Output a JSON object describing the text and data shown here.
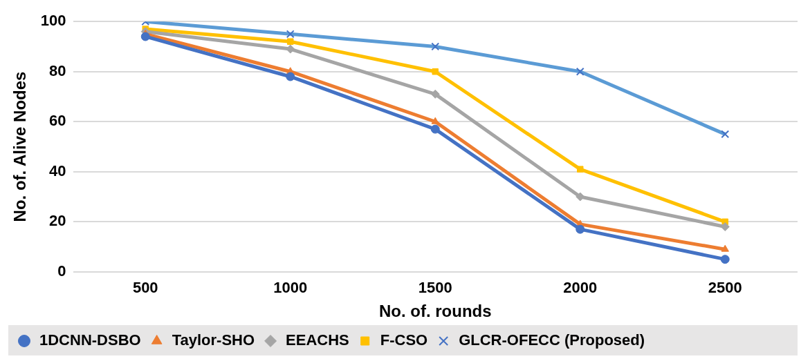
{
  "chart_data": {
    "type": "line",
    "xlabel": "No. of. rounds",
    "ylabel": "No. of. Alive Nodes",
    "categories": [
      "500",
      "1000",
      "1500",
      "2000",
      "2500"
    ],
    "series": [
      {
        "name": "1DCNN-DSBO",
        "color": "#4472c4",
        "marker": "circle",
        "values": [
          94,
          78,
          57,
          17,
          5
        ]
      },
      {
        "name": "Taylor-SHO",
        "color": "#ed7d31",
        "marker": "triangle",
        "values": [
          95,
          80,
          60,
          19,
          9
        ]
      },
      {
        "name": "EEACHS",
        "color": "#a5a5a5",
        "marker": "diamond",
        "values": [
          96,
          89,
          71,
          30,
          18
        ]
      },
      {
        "name": "F-CSO",
        "color": "#ffc000",
        "marker": "square",
        "values": [
          97,
          92,
          80,
          41,
          20
        ]
      },
      {
        "name": "GLCR-OFECC (Proposed)",
        "color": "#5b9bd5",
        "marker": "cross",
        "values": [
          100,
          95,
          90,
          80,
          55
        ]
      }
    ],
    "ylim": [
      0,
      100
    ],
    "yticks": [
      0,
      20,
      40,
      60,
      80,
      100
    ],
    "grid": "y",
    "legend": "bottom",
    "line_style": "solid"
  }
}
